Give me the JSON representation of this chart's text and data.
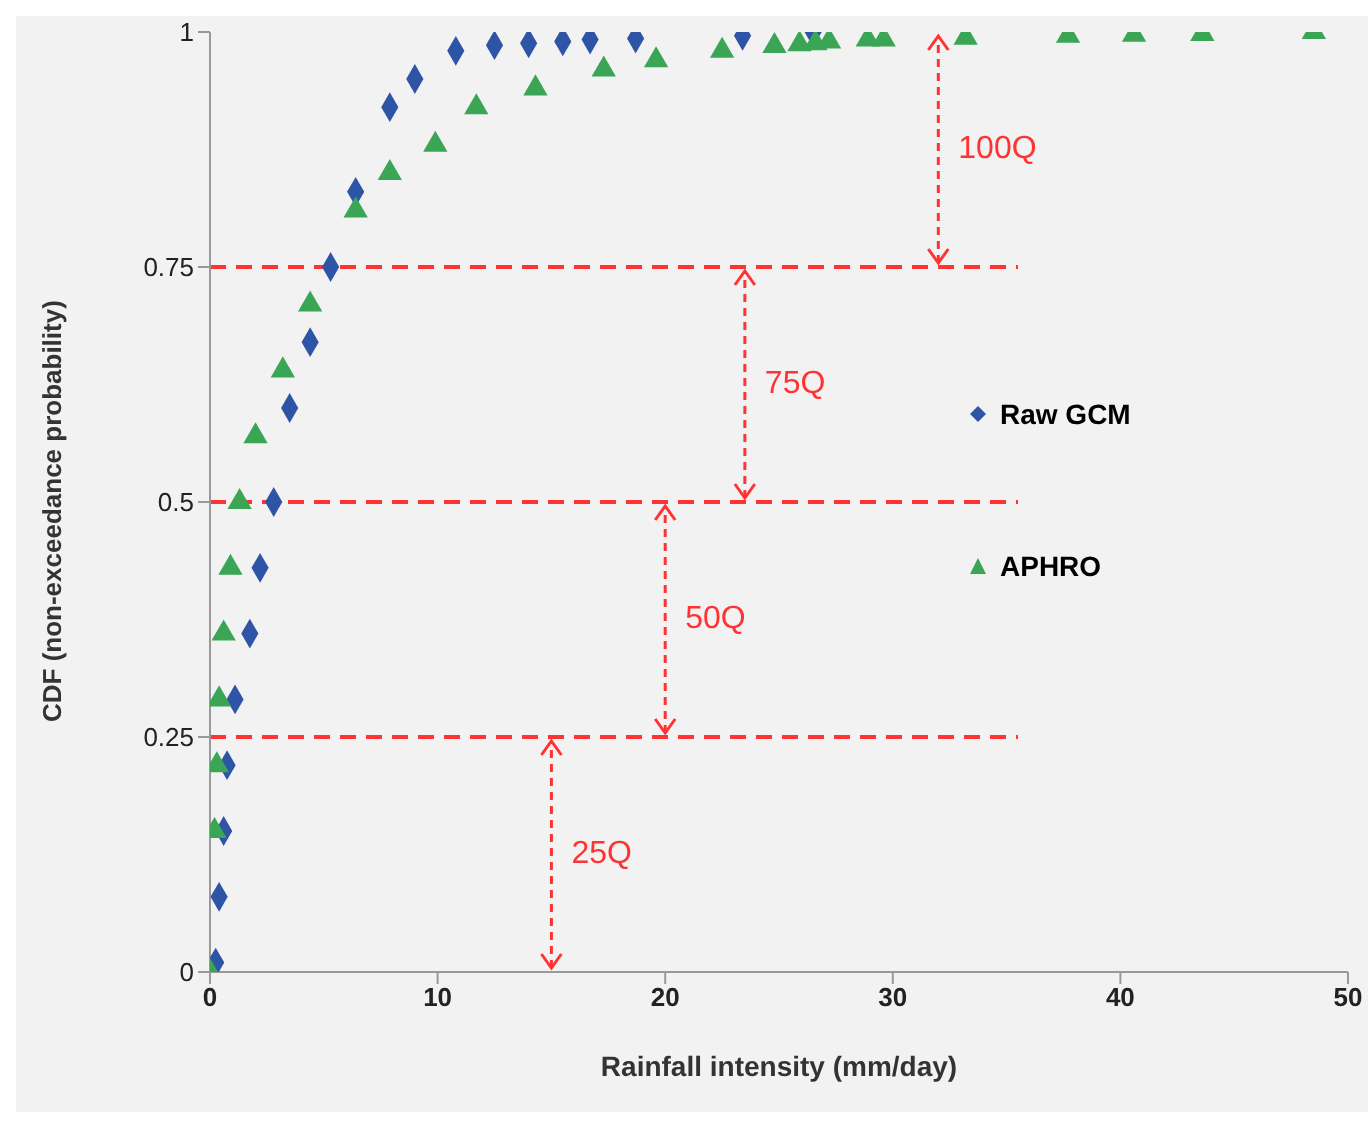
{
  "chart_data": {
    "type": "scatter",
    "xlabel": "Rainfall intensity (mm/day)",
    "ylabel": "CDF  (non-exceedance probability)",
    "xlim": [
      0,
      50
    ],
    "xticks": [
      0,
      10,
      20,
      30,
      40,
      50
    ],
    "ylim": [
      0,
      1
    ],
    "yticks": [
      0,
      0.25,
      0.5,
      0.75,
      1
    ],
    "legend": "right",
    "series": [
      {
        "name": "Raw GCM",
        "color": "#2e54a6",
        "marker": "diamond",
        "x": [
          0.25,
          0.4,
          0.6,
          0.75,
          1.1,
          1.75,
          2.2,
          2.8,
          3.5,
          4.4,
          5.3,
          6.4,
          7.9,
          9.0,
          10.8,
          12.5,
          14.0,
          15.5,
          16.7,
          18.7,
          23.4,
          26.5
        ],
        "values": [
          0.01,
          0.08,
          0.15,
          0.22,
          0.29,
          0.36,
          0.43,
          0.5,
          0.6,
          0.67,
          0.75,
          0.83,
          0.92,
          0.95,
          0.98,
          0.986,
          0.988,
          0.99,
          0.992,
          0.993,
          0.996,
          1
        ]
      },
      {
        "name": "APHRO",
        "color": "#3aa655",
        "marker": "triangle",
        "x": [
          0,
          0.2,
          0.3,
          0.4,
          0.6,
          0.9,
          1.3,
          2.0,
          3.2,
          4.4,
          6.4,
          7.9,
          9.9,
          11.7,
          14.3,
          17.3,
          19.6,
          22.5,
          24.8,
          25.9,
          26.6,
          27.2,
          28.9,
          29.6,
          33.2,
          37.7,
          40.6,
          43.6,
          48.5
        ],
        "values": [
          0,
          0.15,
          0.22,
          0.29,
          0.36,
          0.43,
          0.5,
          0.57,
          0.64,
          0.71,
          0.81,
          0.85,
          0.88,
          0.92,
          0.94,
          0.96,
          0.97,
          0.98,
          0.985,
          0.987,
          0.988,
          0.99,
          0.992,
          0.992,
          0.994,
          0.996,
          0.997,
          0.998,
          1
        ]
      }
    ],
    "ref_lines": [
      {
        "axis": "y",
        "value": 0.25,
        "color": "#ff3333",
        "line_style": "dashed"
      },
      {
        "axis": "y",
        "value": 0.5,
        "color": "#ff3333",
        "line_style": "dashed"
      },
      {
        "axis": "y",
        "value": 0.75,
        "color": "#ff3333",
        "line_style": "dashed"
      }
    ],
    "annotations": [
      "25Q",
      "50Q",
      "75Q",
      "100Q"
    ]
  }
}
